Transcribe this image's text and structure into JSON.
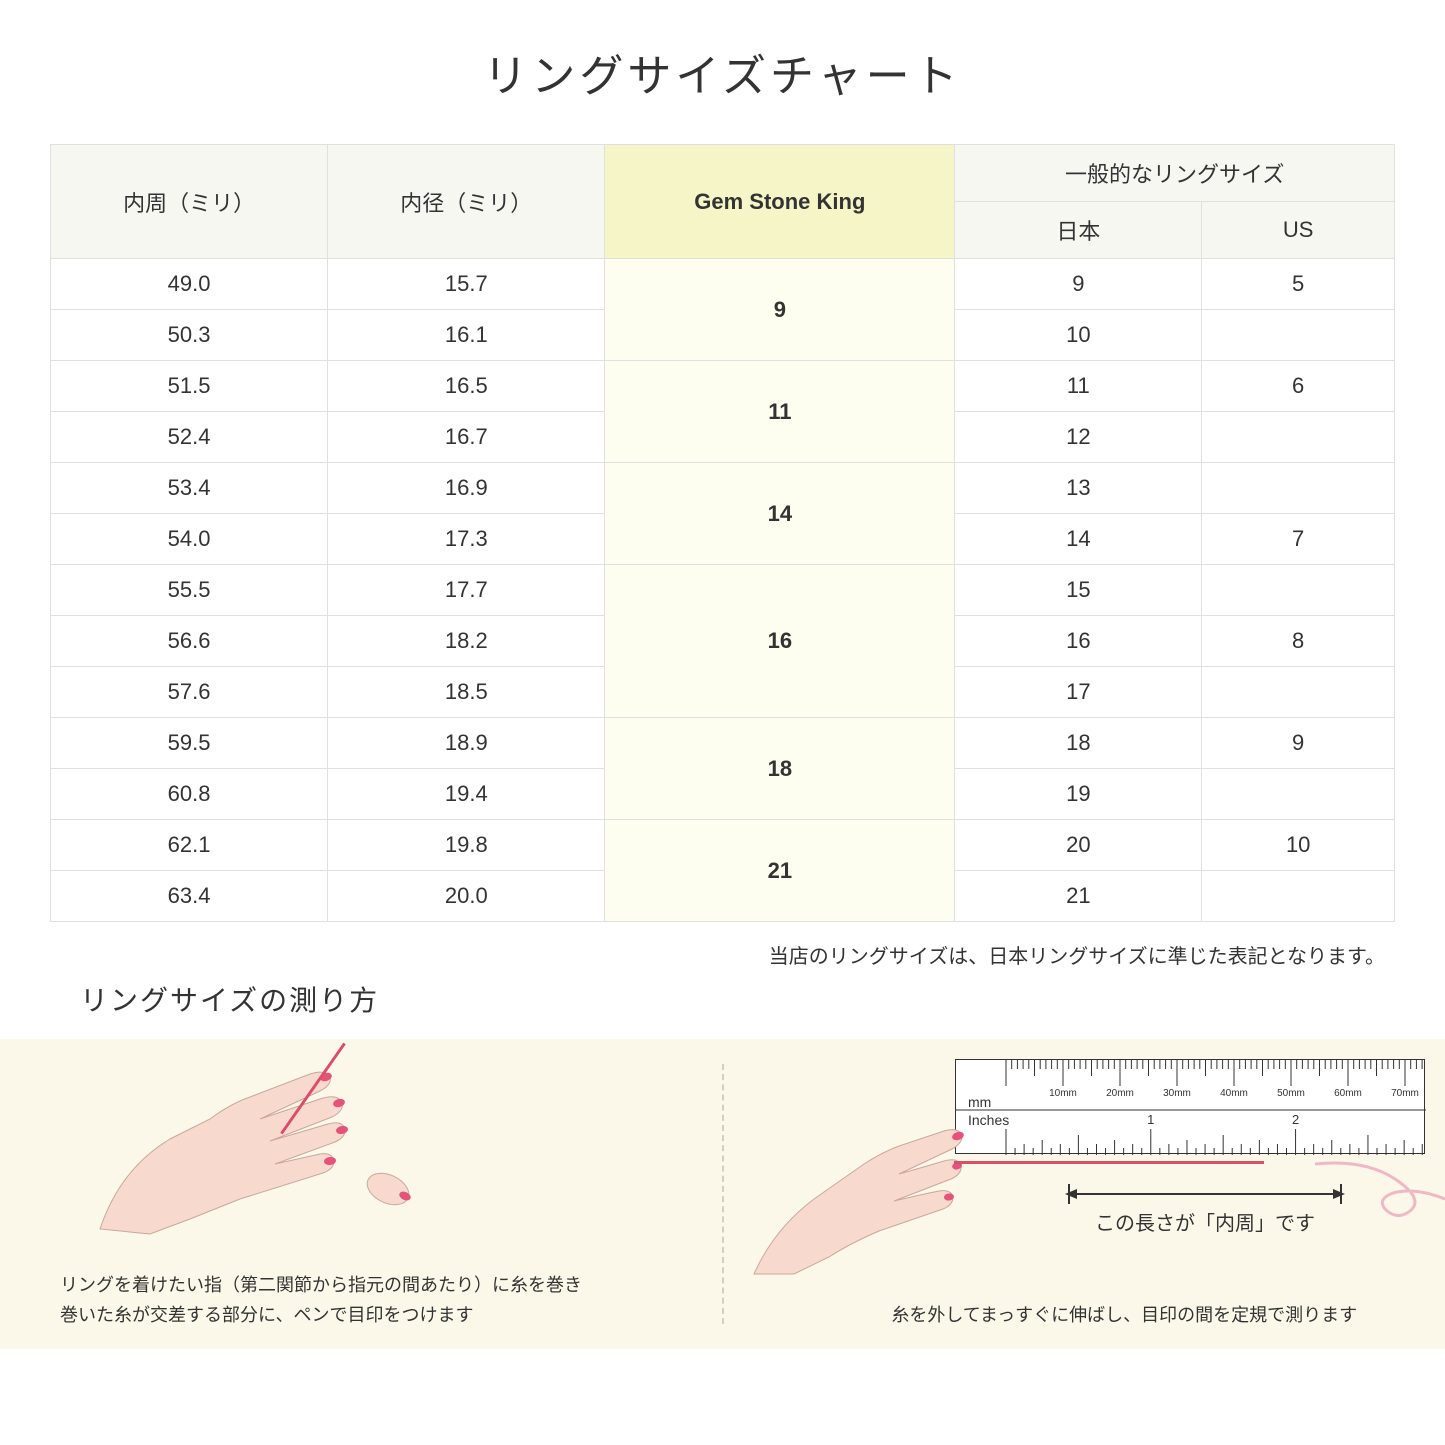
{
  "title": "リングサイズチャート",
  "headers": {
    "circumference": "内周（ミリ）",
    "diameter": "内径（ミリ）",
    "gsk": "Gem Stone King",
    "general": "一般的なリングサイズ",
    "japan": "日本",
    "us": "US"
  },
  "rows": [
    {
      "circ": "49.0",
      "diam": "15.7",
      "gsk": "9",
      "gsk_rowspan": 2,
      "jp": "9",
      "us": "5"
    },
    {
      "circ": "50.3",
      "diam": "16.1",
      "jp": "10",
      "us": ""
    },
    {
      "circ": "51.5",
      "diam": "16.5",
      "gsk": "11",
      "gsk_rowspan": 2,
      "jp": "11",
      "us": "6"
    },
    {
      "circ": "52.4",
      "diam": "16.7",
      "jp": "12",
      "us": ""
    },
    {
      "circ": "53.4",
      "diam": "16.9",
      "gsk": "14",
      "gsk_rowspan": 2,
      "jp": "13",
      "us": ""
    },
    {
      "circ": "54.0",
      "diam": "17.3",
      "jp": "14",
      "us": "7"
    },
    {
      "circ": "55.5",
      "diam": "17.7",
      "gsk": "16",
      "gsk_rowspan": 3,
      "jp": "15",
      "us": ""
    },
    {
      "circ": "56.6",
      "diam": "18.2",
      "jp": "16",
      "us": "8"
    },
    {
      "circ": "57.6",
      "diam": "18.5",
      "jp": "17",
      "us": ""
    },
    {
      "circ": "59.5",
      "diam": "18.9",
      "gsk": "18",
      "gsk_rowspan": 2,
      "jp": "18",
      "us": "9"
    },
    {
      "circ": "60.8",
      "diam": "19.4",
      "jp": "19",
      "us": ""
    },
    {
      "circ": "62.1",
      "diam": "19.8",
      "gsk": "21",
      "gsk_rowspan": 2,
      "jp": "20",
      "us": "10"
    },
    {
      "circ": "63.4",
      "diam": "20.0",
      "jp": "21",
      "us": ""
    }
  ],
  "note": "当店のリングサイズは、日本リングサイズに準じた表記となります。",
  "subtitle": "リングサイズの測り方",
  "instruction_left": "リングを着けたい指（第二関節から指元の間あたり）に糸を巻き\n巻いた糸が交差する部分に、ペンで目印をつけます",
  "instruction_right": "糸を外してまっすぐに伸ばし、目印の間を定規で測ります",
  "measure_label": "この長さが「内周」です",
  "ruler": {
    "mm_label": "mm",
    "inches_label": "Inches",
    "mm_marks": [
      "10mm",
      "20mm",
      "30mm",
      "40mm",
      "50mm",
      "60mm",
      "70mm"
    ],
    "inch_marks": [
      "1",
      "2"
    ]
  },
  "colors": {
    "header_bg": "#f7f7f2",
    "highlight_header_bg": "#f5f5c8",
    "highlight_cell_bg": "#fdfdf0",
    "border": "#e0e0e0",
    "instruction_bg": "#fbf8ea",
    "thread": "#d94f6a",
    "skin": "#f7d9ce",
    "nail": "#e5537a"
  }
}
